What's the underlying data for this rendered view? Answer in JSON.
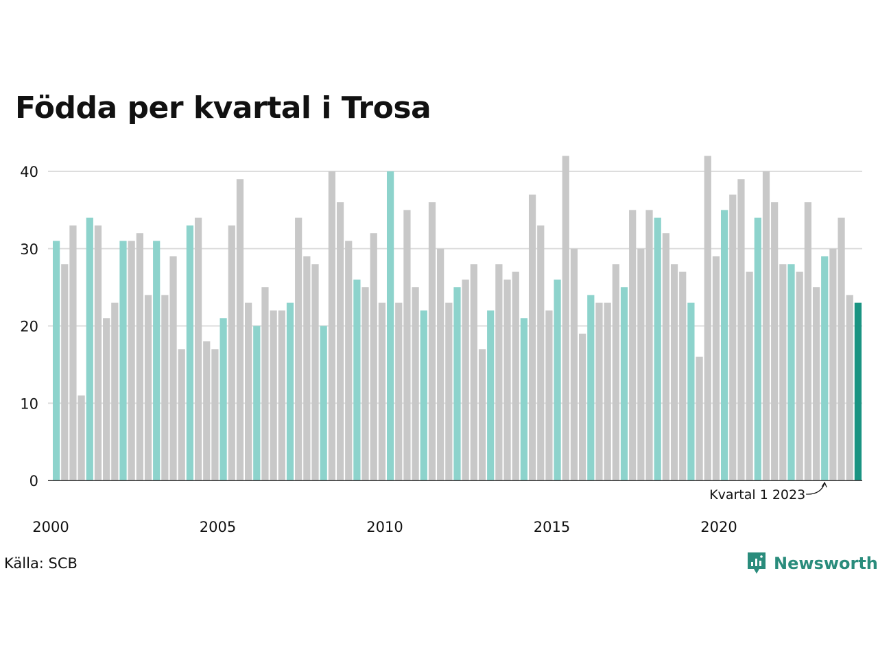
{
  "title": "Födda per kvartal i Trosa",
  "source": "Källa: SCB",
  "brand": "Newsworthy",
  "colors": {
    "highlight_quarter": "#8dd3cc",
    "other_quarter": "#c8c8c8",
    "latest": "#1a9482",
    "grid": "#dddddd",
    "axis": "#222222",
    "brand": "#2a8c7c"
  },
  "chart_data": {
    "type": "bar",
    "title": "Födda per kvartal i Trosa",
    "xlabel": "",
    "ylabel": "",
    "ylim": [
      0,
      43
    ],
    "yticks": [
      0,
      10,
      20,
      30,
      40
    ],
    "xtick_labels": [
      "2000",
      "2005",
      "2010",
      "2015",
      "2020"
    ],
    "grid": true,
    "first_period": "2000 Q1",
    "periods": [
      "2000 Q1",
      "2000 Q2",
      "2000 Q3",
      "2000 Q4",
      "2001 Q1",
      "2001 Q2",
      "2001 Q3",
      "2001 Q4",
      "2002 Q1",
      "2002 Q2",
      "2002 Q3",
      "2002 Q4",
      "2003 Q1",
      "2003 Q2",
      "2003 Q3",
      "2003 Q4",
      "2004 Q1",
      "2004 Q2",
      "2004 Q3",
      "2004 Q4",
      "2005 Q1",
      "2005 Q2",
      "2005 Q3",
      "2005 Q4",
      "2006 Q1",
      "2006 Q2",
      "2006 Q3",
      "2006 Q4",
      "2007 Q1",
      "2007 Q2",
      "2007 Q3",
      "2007 Q4",
      "2008 Q1",
      "2008 Q2",
      "2008 Q3",
      "2008 Q4",
      "2009 Q1",
      "2009 Q2",
      "2009 Q3",
      "2009 Q4",
      "2010 Q1",
      "2010 Q2",
      "2010 Q3",
      "2010 Q4",
      "2011 Q1",
      "2011 Q2",
      "2011 Q3",
      "2011 Q4",
      "2012 Q1",
      "2012 Q2",
      "2012 Q3",
      "2012 Q4",
      "2013 Q1",
      "2013 Q2",
      "2013 Q3",
      "2013 Q4",
      "2014 Q1",
      "2014 Q2",
      "2014 Q3",
      "2014 Q4",
      "2015 Q1",
      "2015 Q2",
      "2015 Q3",
      "2015 Q4",
      "2016 Q1",
      "2016 Q2",
      "2016 Q3",
      "2016 Q4",
      "2017 Q1",
      "2017 Q2",
      "2017 Q3",
      "2017 Q4",
      "2018 Q1",
      "2018 Q2",
      "2018 Q3",
      "2018 Q4",
      "2019 Q1",
      "2019 Q2",
      "2019 Q3",
      "2019 Q4",
      "2020 Q1",
      "2020 Q2",
      "2020 Q3",
      "2020 Q4",
      "2021 Q1",
      "2021 Q2",
      "2021 Q3",
      "2021 Q4",
      "2022 Q1",
      "2022 Q2",
      "2022 Q3",
      "2022 Q4",
      "2023 Q1",
      "2023 Q2",
      "2023 Q3",
      "2023 Q4",
      "2024 Q1"
    ],
    "values": [
      31,
      28,
      33,
      11,
      34,
      33,
      21,
      23,
      31,
      31,
      32,
      24,
      31,
      24,
      29,
      17,
      33,
      34,
      18,
      17,
      21,
      33,
      39,
      23,
      20,
      25,
      22,
      22,
      23,
      34,
      29,
      28,
      20,
      40,
      36,
      31,
      26,
      25,
      32,
      23,
      40,
      23,
      35,
      25,
      22,
      36,
      30,
      23,
      25,
      26,
      28,
      17,
      22,
      28,
      26,
      27,
      21,
      37,
      33,
      22,
      26,
      42,
      30,
      19,
      24,
      23,
      23,
      28,
      25,
      35,
      30,
      35,
      34,
      32,
      28,
      27,
      23,
      16,
      42,
      29,
      35,
      37,
      39,
      27,
      34,
      40,
      36,
      28,
      28,
      27,
      36,
      25,
      29,
      30,
      34,
      24,
      23
    ],
    "highlight_rule": "quarter 1 bars in highlight color, latest bar in latest color",
    "annotations": [
      {
        "text": "Kvartal 1 2023",
        "target_period": "2023 Q1"
      }
    ]
  }
}
